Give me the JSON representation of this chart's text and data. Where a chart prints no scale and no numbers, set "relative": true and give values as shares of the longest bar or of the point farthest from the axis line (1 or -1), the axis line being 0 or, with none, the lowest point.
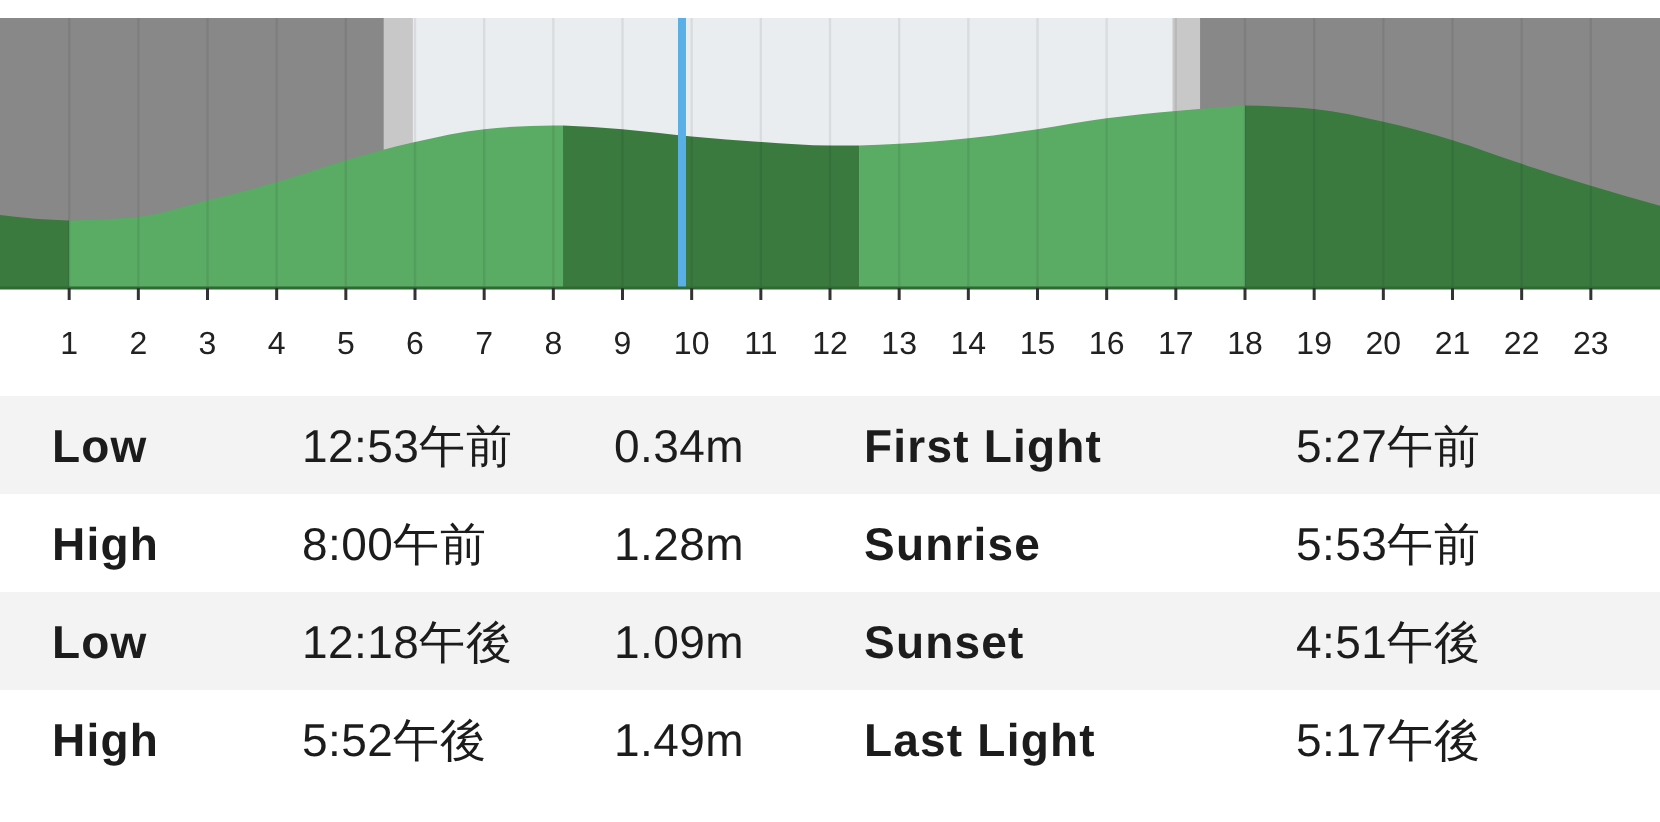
{
  "chart_data": [
    {
      "type": "area",
      "relative": true,
      "xlim": [
        0,
        24
      ],
      "xticks": [
        1,
        2,
        3,
        4,
        5,
        6,
        7,
        8,
        9,
        10,
        11,
        12,
        13,
        14,
        15,
        16,
        17,
        18,
        19,
        20,
        21,
        22,
        23
      ],
      "grid": "x",
      "bands": [
        {
          "axis": "x",
          "from": 0,
          "to": 5.55,
          "color": "#888888"
        },
        {
          "axis": "x",
          "from": 5.55,
          "to": 5.97,
          "color": "#c8c8c8"
        },
        {
          "axis": "x",
          "from": 5.97,
          "to": 16.95,
          "color": "#e9edef"
        },
        {
          "axis": "x",
          "from": 16.95,
          "to": 17.35,
          "color": "#c8c8c8"
        },
        {
          "axis": "x",
          "from": 17.35,
          "to": 24,
          "color": "#888888"
        }
      ],
      "ref_lines": [
        {
          "axis": "x",
          "value": 9.86,
          "color": "#5ab0e6"
        }
      ],
      "series": [
        {
          "color": "#3a7a3f",
          "x": [
            0,
            0.5,
            1
          ],
          "values": [
            0.4,
            0.38,
            0.37
          ]
        },
        {
          "color": "#5aab63",
          "x": [
            1,
            2,
            3,
            4,
            5,
            6,
            7,
            8,
            8.14
          ],
          "values": [
            0.37,
            0.39,
            0.48,
            0.58,
            0.7,
            0.8,
            0.87,
            0.89,
            0.89
          ]
        },
        {
          "color": "#3a7a3f",
          "x": [
            8.14,
            9,
            10,
            11,
            12,
            12.42
          ],
          "values": [
            0.89,
            0.87,
            0.83,
            0.8,
            0.78,
            0.78
          ]
        },
        {
          "color": "#5aab63",
          "x": [
            12.42,
            13,
            14,
            15,
            16,
            17,
            18
          ],
          "values": [
            0.78,
            0.79,
            0.82,
            0.87,
            0.93,
            0.97,
            1.0
          ]
        },
        {
          "color": "#3a7a3f",
          "x": [
            18,
            19,
            20,
            21,
            22,
            23,
            24
          ],
          "values": [
            1.0,
            0.98,
            0.91,
            0.81,
            0.68,
            0.56,
            0.45
          ]
        }
      ]
    },
    {
      "type": "other",
      "annotations": [
        "Low",
        "12:53午前",
        "0.34m",
        "First Light",
        "5:27午前",
        "High",
        "8:00午前",
        "1.28m",
        "Sunrise",
        "5:53午前",
        "Low",
        "12:18午後",
        "1.09m",
        "Sunset",
        "4:51午後",
        "High",
        "5:52午後",
        "1.49m",
        "Last Light",
        "5:17午後"
      ]
    }
  ]
}
